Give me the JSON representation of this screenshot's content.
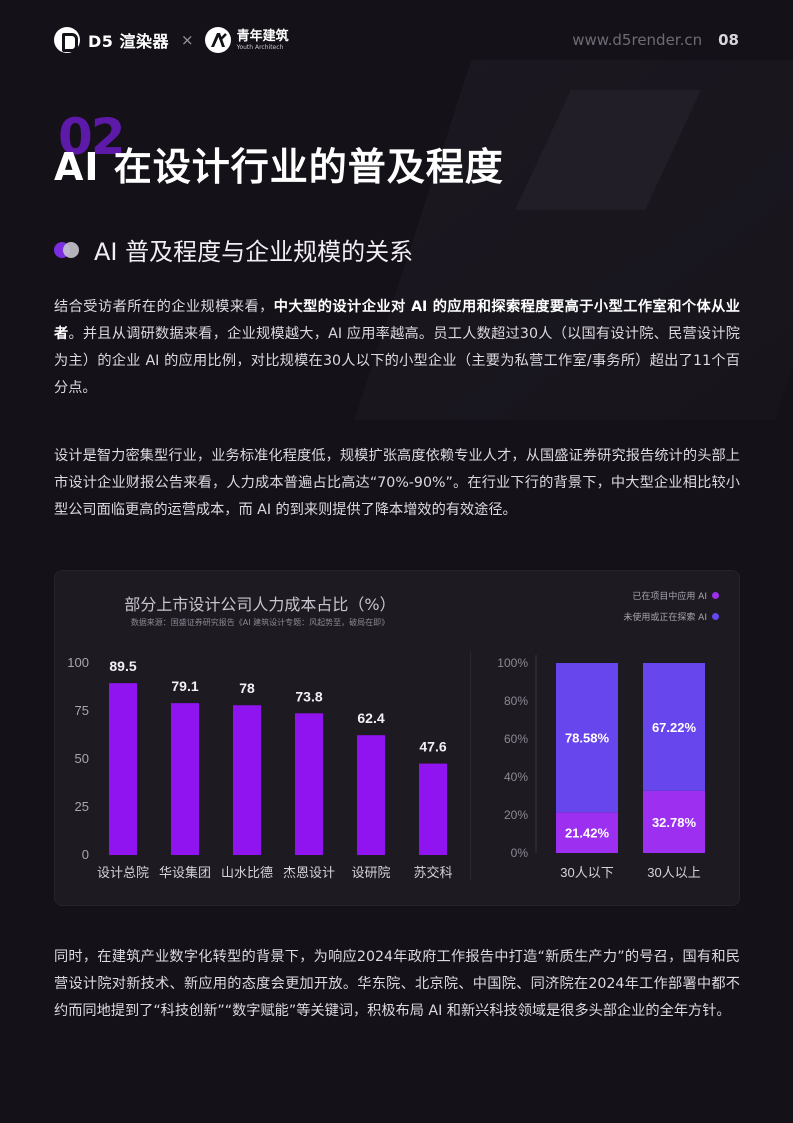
{
  "header": {
    "brand_d5": "D5 渲染器",
    "times": "×",
    "brand_partner_cn": "青年建筑",
    "brand_partner_en": "Youth Architech",
    "site": "www.d5render.cn",
    "page_number": "08"
  },
  "section": {
    "number": "02",
    "title": "AI 在设计行业的普及程度",
    "subtitle": "AI 普及程度与企业规模的关系"
  },
  "paragraph1": {
    "lead": "结合受访者所在的企业规模来看，",
    "bold": "中大型的设计企业对 AI 的应用和探索程度要高于小型工作室和个体从业者",
    "rest": "。并且从调研数据来看，企业规模越大，AI 应用率越高。员工人数超过30人（以国有设计院、民营设计院为主）的企业 AI 的应用比例，对比规模在30人以下的小型企业（主要为私营工作室/事务所）超出了11个百分点。"
  },
  "paragraph2": "设计是智力密集型行业，业务标准化程度低，规模扩张高度依赖专业人才，从国盛证券研究报告统计的头部上市设计企业财报公告来看，人力成本普遍占比高达“70%-90%”。在行业下行的背景下，中大型企业相比较小型公司面临更高的运营成本，而 AI 的到来则提供了降本增效的有效途径。",
  "paragraph3": "同时，在建筑产业数字化转型的背景下，为响应2024年政府工作报告中打造“新质生产力”的号召，国有和民营设计院对新技术、新应用的态度会更加开放。华东院、北京院、中国院、同济院在2024年工作部署中都不约而同地提到了“科技创新”“数字赋能”等关键词，积极布局 AI 和新兴科技领域是很多头部企业的全年方针。",
  "chart_data": [
    {
      "type": "bar",
      "title": "部分上市设计公司人力成本占比（%）",
      "source": "数据来源：国盛证券研究报告《AI 建筑设计专题：风起势至，破局在即》",
      "categories": [
        "设计总院",
        "华设集团",
        "山水比德",
        "杰恩设计",
        "设研院",
        "苏交科"
      ],
      "values": [
        89.5,
        79.1,
        78,
        73.8,
        62.4,
        47.6
      ],
      "value_labels": [
        "89.5",
        "79.1",
        "78",
        "73.8",
        "62.4",
        "47.6"
      ],
      "y_ticks": [
        "0",
        "25",
        "50",
        "75",
        "100"
      ],
      "ylim": [
        0,
        100
      ],
      "color": "#8f14f0"
    },
    {
      "type": "bar",
      "stacked": true,
      "categories": [
        "30人以下",
        "30人以上"
      ],
      "series": [
        {
          "name": "已在项目中应用 AI",
          "values": [
            21.42,
            32.78
          ],
          "labels": [
            "21.42%",
            "32.78%"
          ],
          "color": "#9c2ff0"
        },
        {
          "name": "未使用或正在探索 AI",
          "values": [
            78.58,
            67.22
          ],
          "labels": [
            "78.58%",
            "67.22%"
          ],
          "color": "#6846ee"
        }
      ],
      "y_ticks": [
        "0%",
        "20%",
        "40%",
        "60%",
        "80%",
        "100%"
      ],
      "ylim": [
        0,
        100
      ],
      "legend_position": "top-right"
    }
  ]
}
